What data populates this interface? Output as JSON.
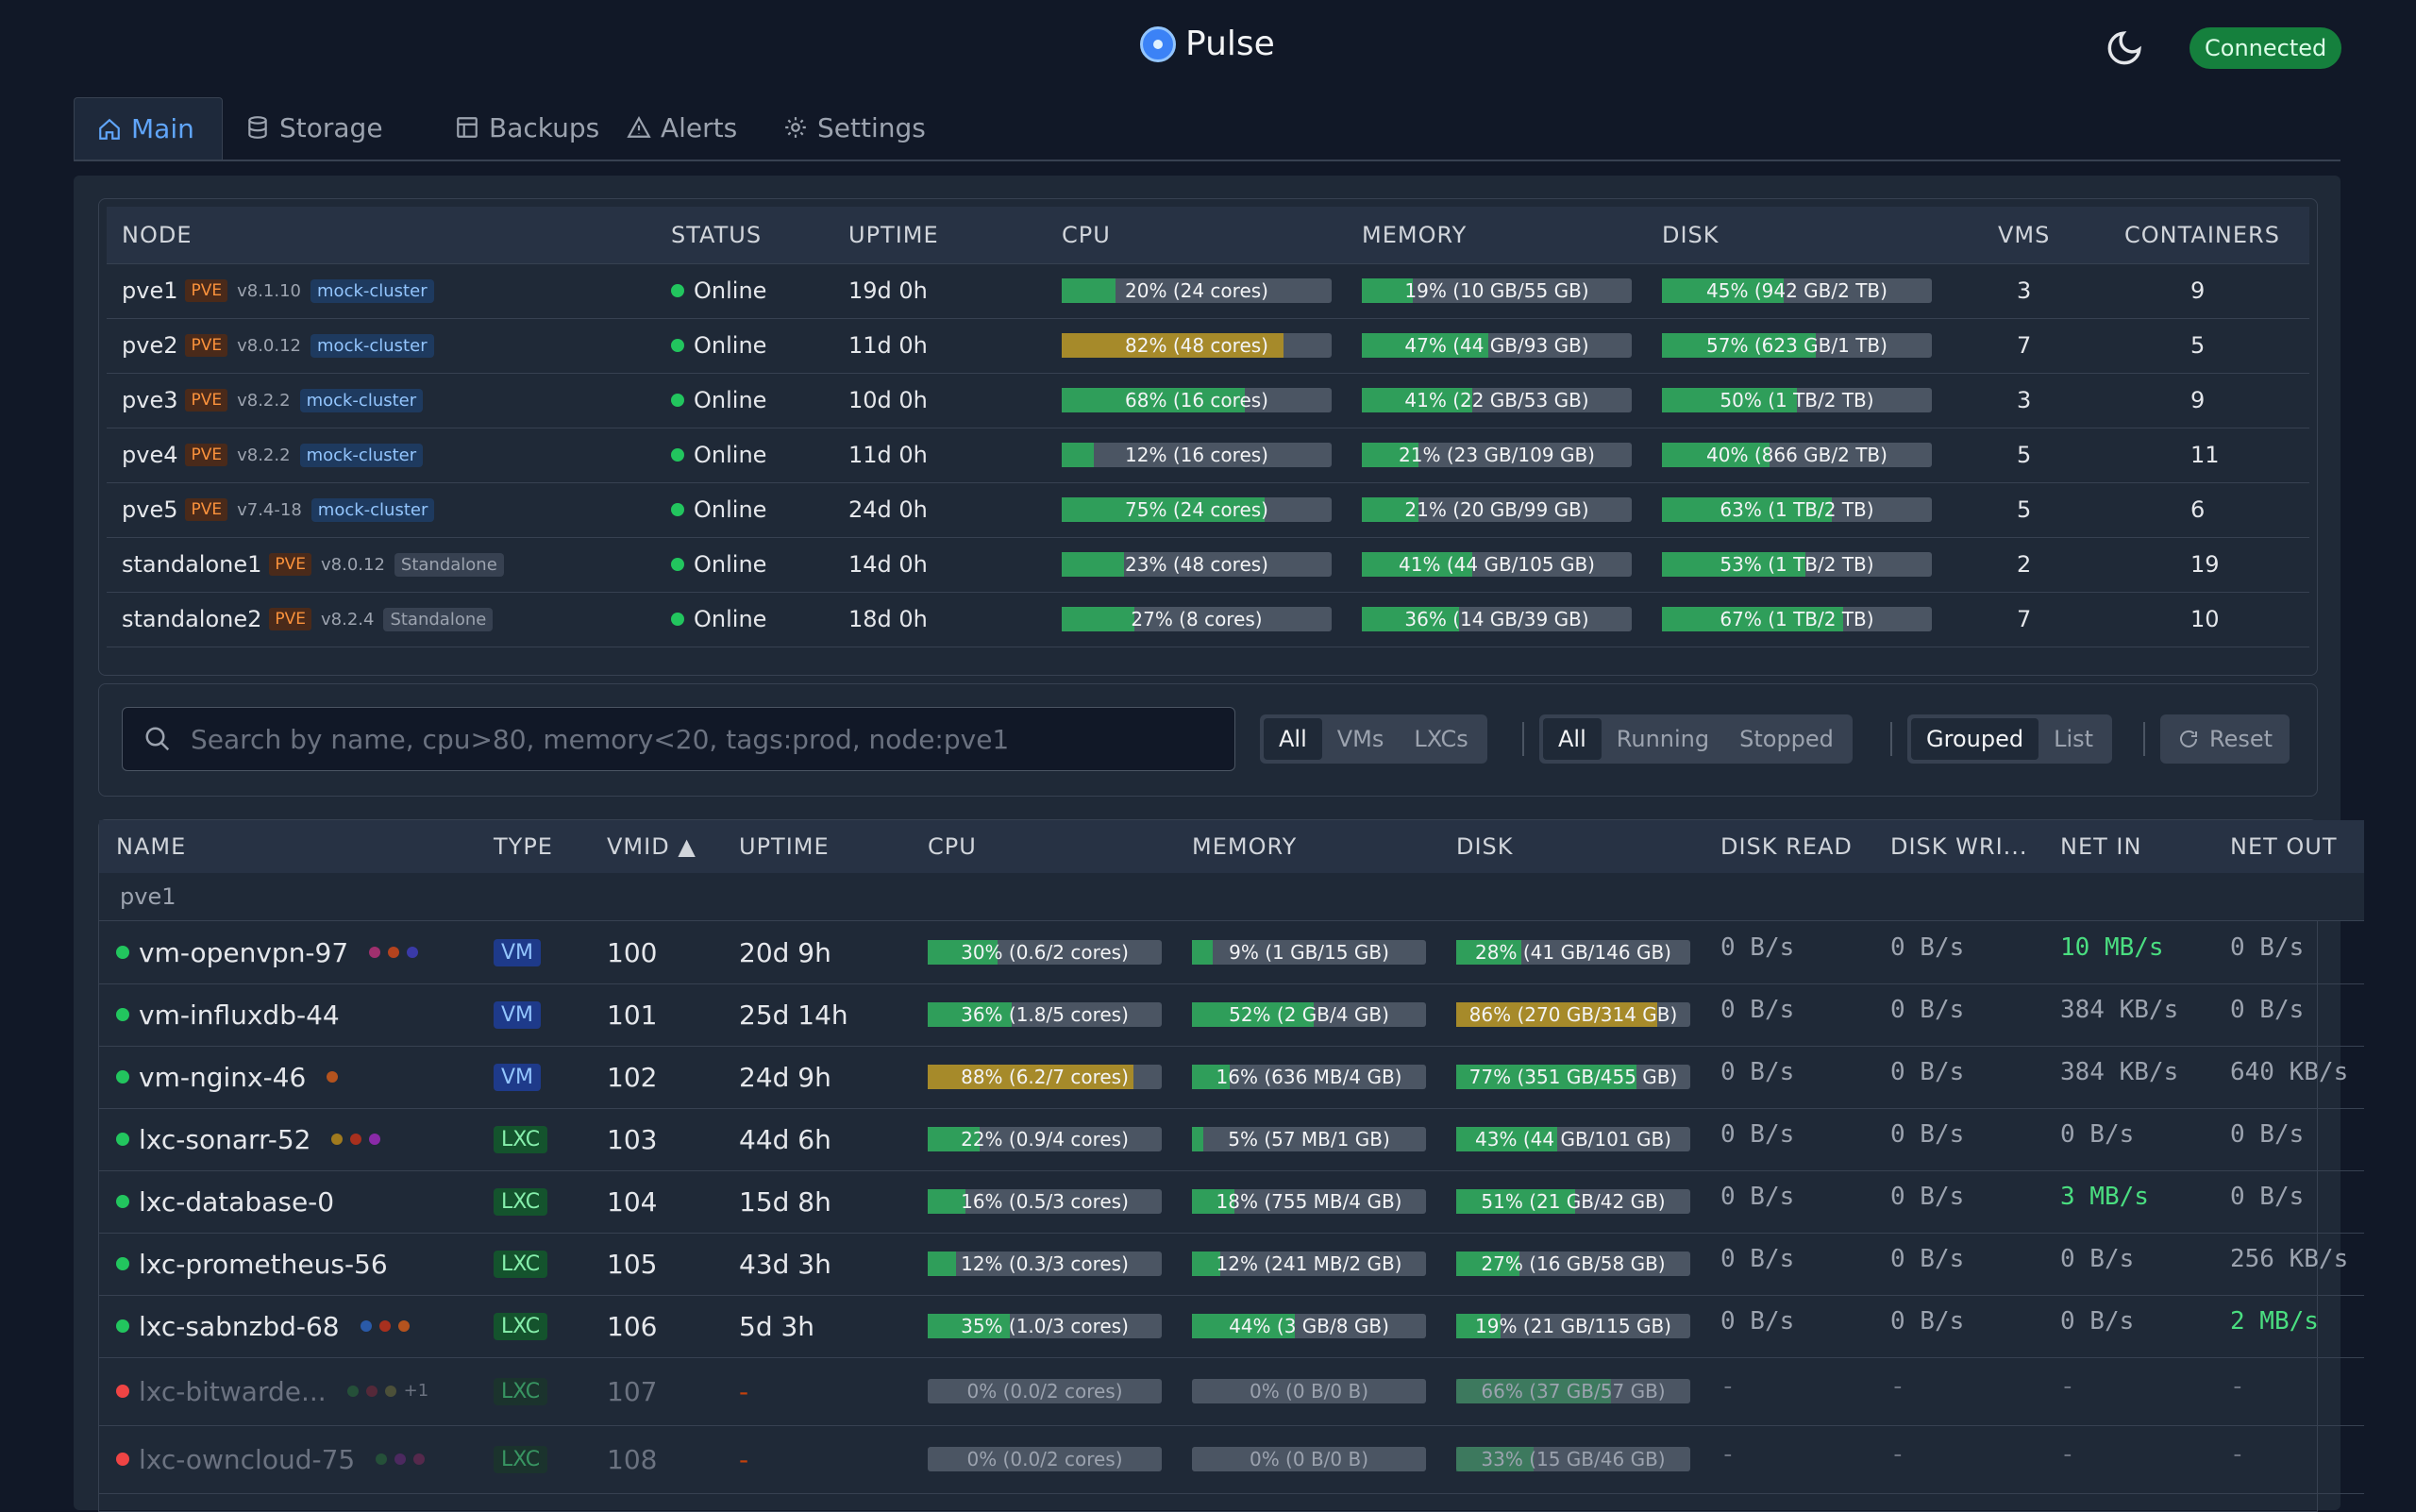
{
  "app": {
    "title": "Pulse",
    "connection_status": "Connected",
    "accent": "#3b82f6"
  },
  "tabs": [
    {
      "label": "Main",
      "icon": "home-icon",
      "active": true
    },
    {
      "label": "Storage",
      "icon": "database-icon"
    },
    {
      "label": "Backups",
      "icon": "archive-icon"
    },
    {
      "label": "Alerts",
      "icon": "warning-icon"
    },
    {
      "label": "Settings",
      "icon": "gear-icon"
    }
  ],
  "nodes": {
    "headers": [
      "NODE",
      "STATUS",
      "UPTIME",
      "CPU",
      "MEMORY",
      "DISK",
      "VMS",
      "CONTAINERS"
    ],
    "rows": [
      {
        "name": "pve1",
        "badge": "PVE",
        "version": "v8.1.10",
        "tag": "mock-cluster",
        "status": "Online",
        "uptime": "19d 0h",
        "cpu": {
          "label": "20% (24 cores)",
          "pct": 20
        },
        "memory": {
          "label": "19% (10 GB/55 GB)",
          "pct": 19
        },
        "disk": {
          "label": "45% (942 GB/2 TB)",
          "pct": 45
        },
        "vms": "3",
        "containers": "9"
      },
      {
        "name": "pve2",
        "badge": "PVE",
        "version": "v8.0.12",
        "tag": "mock-cluster",
        "status": "Online",
        "uptime": "11d 0h",
        "cpu": {
          "label": "82% (48 cores)",
          "pct": 82
        },
        "memory": {
          "label": "47% (44 GB/93 GB)",
          "pct": 47
        },
        "disk": {
          "label": "57% (623 GB/1 TB)",
          "pct": 57
        },
        "vms": "7",
        "containers": "5"
      },
      {
        "name": "pve3",
        "badge": "PVE",
        "version": "v8.2.2",
        "tag": "mock-cluster",
        "status": "Online",
        "uptime": "10d 0h",
        "cpu": {
          "label": "68% (16 cores)",
          "pct": 68
        },
        "memory": {
          "label": "41% (22 GB/53 GB)",
          "pct": 41
        },
        "disk": {
          "label": "50% (1 TB/2 TB)",
          "pct": 50
        },
        "vms": "3",
        "containers": "9"
      },
      {
        "name": "pve4",
        "badge": "PVE",
        "version": "v8.2.2",
        "tag": "mock-cluster",
        "status": "Online",
        "uptime": "11d 0h",
        "cpu": {
          "label": "12% (16 cores)",
          "pct": 12
        },
        "memory": {
          "label": "21% (23 GB/109 GB)",
          "pct": 21
        },
        "disk": {
          "label": "40% (866 GB/2 TB)",
          "pct": 40
        },
        "vms": "5",
        "containers": "11"
      },
      {
        "name": "pve5",
        "badge": "PVE",
        "version": "v7.4-18",
        "tag": "mock-cluster",
        "status": "Online",
        "uptime": "24d 0h",
        "cpu": {
          "label": "75% (24 cores)",
          "pct": 75
        },
        "memory": {
          "label": "21% (20 GB/99 GB)",
          "pct": 21
        },
        "disk": {
          "label": "63% (1 TB/2 TB)",
          "pct": 63
        },
        "vms": "5",
        "containers": "6"
      },
      {
        "name": "standalone1",
        "badge": "PVE",
        "version": "v8.0.12",
        "tag": "Standalone",
        "status": "Online",
        "uptime": "14d 0h",
        "cpu": {
          "label": "23% (48 cores)",
          "pct": 23
        },
        "memory": {
          "label": "41% (44 GB/105 GB)",
          "pct": 41
        },
        "disk": {
          "label": "53% (1 TB/2 TB)",
          "pct": 53
        },
        "vms": "2",
        "containers": "19"
      },
      {
        "name": "standalone2",
        "badge": "PVE",
        "version": "v8.2.4",
        "tag": "Standalone",
        "status": "Online",
        "uptime": "18d 0h",
        "cpu": {
          "label": "27% (8 cores)",
          "pct": 27
        },
        "memory": {
          "label": "36% (14 GB/39 GB)",
          "pct": 36
        },
        "disk": {
          "label": "67% (1 TB/2 TB)",
          "pct": 67
        },
        "vms": "7",
        "containers": "10"
      }
    ]
  },
  "filters": {
    "search_placeholder": "Search by name, cpu>80, memory<20, tags:prod, node:pve1",
    "type_options": [
      "All",
      "VMs",
      "LXCs"
    ],
    "status_options": [
      "All",
      "Running",
      "Stopped"
    ],
    "view_options": [
      "Grouped",
      "List"
    ],
    "reset_label": "Reset"
  },
  "guests": {
    "headers": [
      "NAME",
      "TYPE",
      "VMID ▲",
      "UPTIME",
      "CPU",
      "MEMORY",
      "DISK",
      "DISK READ",
      "DISK WRI...",
      "NET IN",
      "NET OUT"
    ],
    "group": "pve1",
    "rows": [
      {
        "name": "vm-openvpn-97",
        "tags": [
          "#a0306e",
          "#b4431e",
          "#3a3aa8"
        ],
        "type": "VM",
        "vmid": "100",
        "uptime": "20d 9h",
        "cpu": {
          "label": "30% (0.6/2 cores)",
          "pct": 30
        },
        "memory": {
          "label": "9% (1 GB/15 GB)",
          "pct": 9
        },
        "disk": {
          "label": "28% (41 GB/146 GB)",
          "pct": 28
        },
        "disk_read": "0 B/s",
        "disk_write": "0 B/s",
        "net_in": "10 MB/s",
        "net_out": "0 B/s",
        "net_in_hi": true
      },
      {
        "name": "vm-influxdb-44",
        "tags": [],
        "type": "VM",
        "vmid": "101",
        "uptime": "25d 14h",
        "cpu": {
          "label": "36% (1.8/5 cores)",
          "pct": 36
        },
        "memory": {
          "label": "52% (2 GB/4 GB)",
          "pct": 52
        },
        "disk": {
          "label": "86% (270 GB/314 GB)",
          "pct": 86
        },
        "disk_read": "0 B/s",
        "disk_write": "0 B/s",
        "net_in": "384 KB/s",
        "net_out": "0 B/s"
      },
      {
        "name": "vm-nginx-46",
        "tags": [
          "#b4531e"
        ],
        "type": "VM",
        "vmid": "102",
        "uptime": "24d 9h",
        "cpu": {
          "label": "88% (6.2/7 cores)",
          "pct": 88
        },
        "memory": {
          "label": "16% (636 MB/4 GB)",
          "pct": 16
        },
        "disk": {
          "label": "77% (351 GB/455 GB)",
          "pct": 77
        },
        "disk_read": "0 B/s",
        "disk_write": "0 B/s",
        "net_in": "384 KB/s",
        "net_out": "640 KB/s"
      },
      {
        "name": "lxc-sonarr-52",
        "tags": [
          "#a07a1e",
          "#a8301e",
          "#8a2aa8"
        ],
        "type": "LXC",
        "vmid": "103",
        "uptime": "44d 6h",
        "cpu": {
          "label": "22% (0.9/4 cores)",
          "pct": 22
        },
        "memory": {
          "label": "5% (57 MB/1 GB)",
          "pct": 5
        },
        "disk": {
          "label": "43% (44 GB/101 GB)",
          "pct": 43
        },
        "disk_read": "0 B/s",
        "disk_write": "0 B/s",
        "net_in": "0 B/s",
        "net_out": "0 B/s"
      },
      {
        "name": "lxc-database-0",
        "tags": [],
        "type": "LXC",
        "vmid": "104",
        "uptime": "15d 8h",
        "cpu": {
          "label": "16% (0.5/3 cores)",
          "pct": 16
        },
        "memory": {
          "label": "18% (755 MB/4 GB)",
          "pct": 18
        },
        "disk": {
          "label": "51% (21 GB/42 GB)",
          "pct": 51
        },
        "disk_read": "0 B/s",
        "disk_write": "0 B/s",
        "net_in": "3 MB/s",
        "net_out": "0 B/s",
        "net_in_hi": true
      },
      {
        "name": "lxc-prometheus-56",
        "tags": [],
        "type": "LXC",
        "vmid": "105",
        "uptime": "43d 3h",
        "cpu": {
          "label": "12% (0.3/3 cores)",
          "pct": 12
        },
        "memory": {
          "label": "12% (241 MB/2 GB)",
          "pct": 12
        },
        "disk": {
          "label": "27% (16 GB/58 GB)",
          "pct": 27
        },
        "disk_read": "0 B/s",
        "disk_write": "0 B/s",
        "net_in": "0 B/s",
        "net_out": "256 KB/s"
      },
      {
        "name": "lxc-sabnzbd-68",
        "tags": [
          "#2a5aa8",
          "#a8301e",
          "#b4531e"
        ],
        "type": "LXC",
        "vmid": "106",
        "uptime": "5d 3h",
        "cpu": {
          "label": "35% (1.0/3 cores)",
          "pct": 35
        },
        "memory": {
          "label": "44% (3 GB/8 GB)",
          "pct": 44
        },
        "disk": {
          "label": "19% (21 GB/115 GB)",
          "pct": 19
        },
        "disk_read": "0 B/s",
        "disk_write": "0 B/s",
        "net_in": "0 B/s",
        "net_out": "2 MB/s",
        "net_out_hi": true
      },
      {
        "name": "lxc-bitwarde...",
        "tags": [
          "#2a6a3a",
          "#7a2a3a",
          "#6a6a3a"
        ],
        "more_tags": "+1",
        "type": "LXC",
        "vmid": "107",
        "uptime": "-",
        "cpu": {
          "label": "0% (0.0/2 cores)",
          "pct": 0
        },
        "memory": {
          "label": "0% (0 B/0 B)",
          "pct": 0
        },
        "disk": {
          "label": "66% (37 GB/57 GB)",
          "pct": 66
        },
        "disk_read": "-",
        "disk_write": "-",
        "net_in": "-",
        "net_out": "-",
        "stopped": true
      },
      {
        "name": "lxc-owncloud-75",
        "tags": [
          "#2a6a3a",
          "#6a2a7a",
          "#7a2a5a"
        ],
        "type": "LXC",
        "vmid": "108",
        "uptime": "-",
        "cpu": {
          "label": "0% (0.0/2 cores)",
          "pct": 0
        },
        "memory": {
          "label": "0% (0 B/0 B)",
          "pct": 0
        },
        "disk": {
          "label": "33% (15 GB/46 GB)",
          "pct": 33
        },
        "disk_read": "-",
        "disk_write": "-",
        "net_in": "-",
        "net_out": "-",
        "stopped": true
      }
    ]
  },
  "colors": {
    "ok": "#2f9e5a",
    "warn": "#a68a2a",
    "stopped": "#4b5563"
  }
}
